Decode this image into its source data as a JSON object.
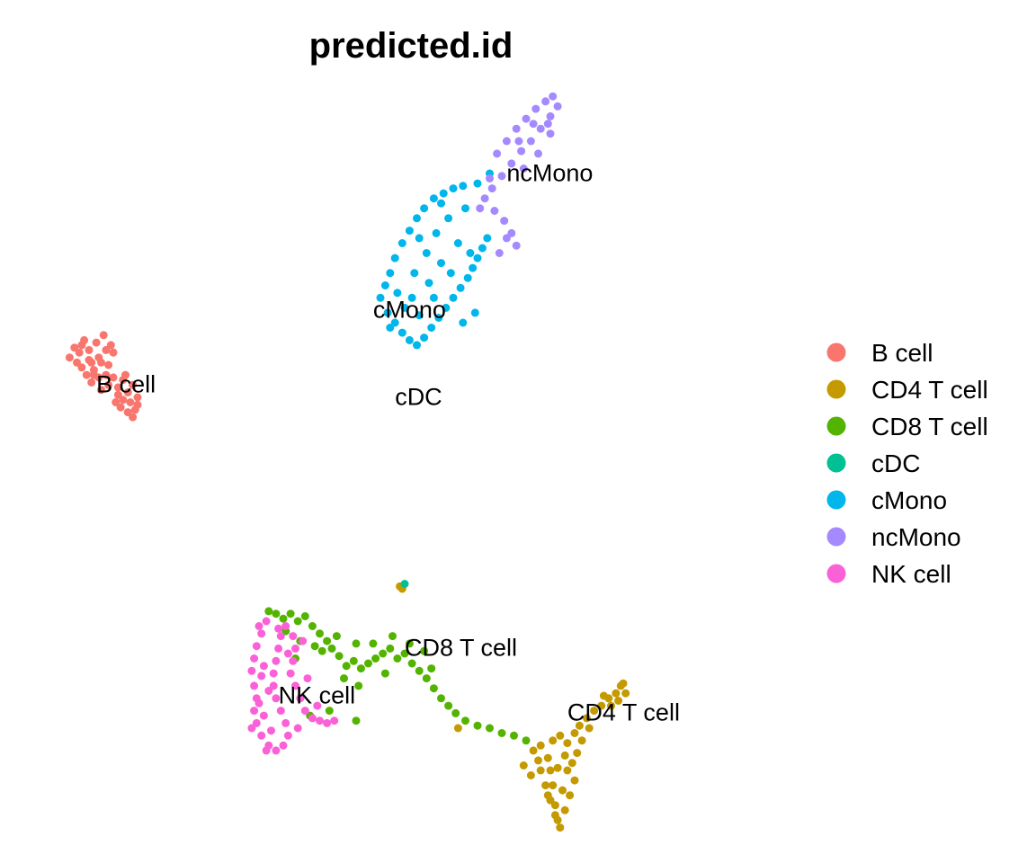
{
  "chart_data": {
    "type": "scatter",
    "title": "predicted.id",
    "xlabel": "",
    "ylabel": "",
    "axes": "hidden",
    "grid": false,
    "legend_position": "right",
    "xlim": [
      -15,
      15
    ],
    "ylim": [
      -15,
      15
    ],
    "categories": [
      "B cell",
      "CD4 T cell",
      "CD8 T cell",
      "cDC",
      "cMono",
      "ncMono",
      "NK cell"
    ],
    "colors": {
      "B cell": "#F8766D",
      "CD4 T cell": "#C49A00",
      "CD8 T cell": "#53B400",
      "cDC": "#00C094",
      "cMono": "#00B6EB",
      "ncMono": "#A58AFF",
      "NK cell": "#FB61D7"
    },
    "series": [
      {
        "name": "B cell",
        "label": {
          "text": "B cell",
          "x": -12.7,
          "y": 3.2
        },
        "points": [
          [
            -13.8,
            4.6
          ],
          [
            -13.6,
            5.0
          ],
          [
            -13.4,
            4.8
          ],
          [
            -13.2,
            5.3
          ],
          [
            -13.0,
            4.9
          ],
          [
            -12.9,
            4.4
          ],
          [
            -12.8,
            4.1
          ],
          [
            -13.3,
            4.2
          ],
          [
            -13.1,
            3.9
          ],
          [
            -12.9,
            3.6
          ],
          [
            -12.6,
            3.8
          ],
          [
            -12.5,
            4.4
          ],
          [
            -12.7,
            5.2
          ],
          [
            -12.4,
            5.5
          ],
          [
            -12.3,
            4.9
          ],
          [
            -12.2,
            4.3
          ],
          [
            -12.0,
            3.8
          ],
          [
            -11.8,
            3.4
          ],
          [
            -11.6,
            3.7
          ],
          [
            -11.4,
            3.2
          ],
          [
            -11.2,
            3.5
          ],
          [
            -11.0,
            3.0
          ],
          [
            -11.3,
            2.8
          ],
          [
            -11.6,
            2.9
          ],
          [
            -11.8,
            3.1
          ],
          [
            -11.1,
            2.5
          ],
          [
            -11.4,
            2.4
          ],
          [
            -11.7,
            2.6
          ],
          [
            -12.2,
            3.5
          ],
          [
            -12.0,
            4.8
          ],
          [
            -12.6,
            4.6
          ],
          [
            -13.0,
            4.5
          ],
          [
            -13.5,
            4.4
          ],
          [
            -12.8,
            3.9
          ],
          [
            -11.9,
            2.8
          ],
          [
            -11.5,
            3.9
          ],
          [
            -12.3,
            3.9
          ],
          [
            -11.2,
            2.2
          ],
          [
            -11.0,
            2.7
          ],
          [
            -12.1,
            5.1
          ],
          [
            -13.3,
            5.1
          ],
          [
            -12.5,
            3.3
          ]
        ]
      },
      {
        "name": "CD4 T cell",
        "label": {
          "text": "CD4 T cell",
          "x": 6.7,
          "y": -10.0
        },
        "points": [
          [
            5.3,
            -11.2
          ],
          [
            5.6,
            -11.0
          ],
          [
            5.9,
            -11.5
          ],
          [
            6.1,
            -10.8
          ],
          [
            6.4,
            -10.6
          ],
          [
            6.7,
            -10.9
          ],
          [
            7.0,
            -10.5
          ],
          [
            7.2,
            -10.2
          ],
          [
            7.5,
            -9.9
          ],
          [
            7.8,
            -9.6
          ],
          [
            8.1,
            -9.4
          ],
          [
            8.4,
            -9.1
          ],
          [
            8.7,
            -8.9
          ],
          [
            8.9,
            -8.6
          ],
          [
            9.1,
            -8.9
          ],
          [
            8.8,
            -9.2
          ],
          [
            8.5,
            -9.4
          ],
          [
            5.6,
            -12.0
          ],
          [
            5.8,
            -12.6
          ],
          [
            6.0,
            -13.2
          ],
          [
            6.2,
            -13.8
          ],
          [
            6.4,
            -14.3
          ],
          [
            6.6,
            -13.6
          ],
          [
            6.8,
            -13.0
          ],
          [
            7.0,
            -12.4
          ],
          [
            6.9,
            -11.7
          ],
          [
            6.6,
            -11.4
          ],
          [
            6.3,
            -11.9
          ],
          [
            6.1,
            -12.6
          ],
          [
            5.9,
            -13.0
          ],
          [
            6.7,
            -12.0
          ],
          [
            6.5,
            -12.8
          ],
          [
            7.1,
            -11.3
          ],
          [
            6.2,
            -13.4
          ],
          [
            6.3,
            -14.0
          ],
          [
            5.5,
            -11.6
          ],
          [
            7.3,
            -10.8
          ],
          [
            4.9,
            -11.8
          ],
          [
            5.2,
            -12.2
          ],
          [
            8.2,
            -9.0
          ],
          [
            9.0,
            -8.5
          ],
          [
            7.6,
            -10.3
          ],
          [
            6.0,
            -12.0
          ],
          [
            -0.2,
            -4.6
          ],
          [
            -0.1,
            -4.7
          ],
          [
            2.2,
            -10.3
          ]
        ]
      },
      {
        "name": "CD8 T cell",
        "label": {
          "text": "CD8 T cell",
          "x": 0.0,
          "y": -7.4
        },
        "points": [
          [
            -5.6,
            -5.6
          ],
          [
            -5.3,
            -5.7
          ],
          [
            -5.0,
            -5.9
          ],
          [
            -4.7,
            -5.7
          ],
          [
            -4.4,
            -6.0
          ],
          [
            -4.1,
            -5.8
          ],
          [
            -3.8,
            -6.2
          ],
          [
            -3.5,
            -6.5
          ],
          [
            -3.2,
            -6.8
          ],
          [
            -3.4,
            -7.2
          ],
          [
            -3.0,
            -7.1
          ],
          [
            -2.7,
            -7.4
          ],
          [
            -2.4,
            -7.8
          ],
          [
            -2.1,
            -7.6
          ],
          [
            -1.8,
            -7.9
          ],
          [
            -1.5,
            -7.7
          ],
          [
            -1.2,
            -7.5
          ],
          [
            -0.9,
            -7.3
          ],
          [
            -0.6,
            -7.1
          ],
          [
            -0.3,
            -7.5
          ],
          [
            0.0,
            -7.3
          ],
          [
            0.3,
            -7.7
          ],
          [
            0.6,
            -8.0
          ],
          [
            0.9,
            -8.3
          ],
          [
            1.2,
            -8.7
          ],
          [
            1.5,
            -9.1
          ],
          [
            1.8,
            -9.4
          ],
          [
            2.1,
            -9.7
          ],
          [
            2.5,
            -10.0
          ],
          [
            3.0,
            -10.2
          ],
          [
            3.5,
            -10.3
          ],
          [
            4.0,
            -10.5
          ],
          [
            4.5,
            -10.6
          ],
          [
            5.0,
            -10.8
          ],
          [
            -2.8,
            -6.6
          ],
          [
            -2.0,
            -6.9
          ],
          [
            -1.3,
            -6.9
          ],
          [
            -0.5,
            -6.6
          ],
          [
            0.2,
            -6.9
          ],
          [
            0.8,
            -7.2
          ],
          [
            1.1,
            -7.9
          ],
          [
            -4.9,
            -6.4
          ],
          [
            -4.3,
            -6.8
          ],
          [
            -3.7,
            -7.0
          ],
          [
            -2.5,
            -8.3
          ],
          [
            -1.9,
            -8.6
          ],
          [
            -0.8,
            -8.1
          ],
          [
            -3.1,
            -9.6
          ],
          [
            -3.9,
            -9.8
          ],
          [
            -2.0,
            -10.0
          ],
          [
            -4.5,
            -7.5
          ]
        ]
      },
      {
        "name": "cDC",
        "label": {
          "text": "cDC",
          "x": -0.4,
          "y": 2.7
        },
        "points": [
          [
            0.0,
            -4.5
          ]
        ]
      },
      {
        "name": "cMono",
        "label": {
          "text": "cMono",
          "x": -1.3,
          "y": 6.2
        },
        "points": [
          [
            -1.0,
            7.0
          ],
          [
            -0.8,
            7.5
          ],
          [
            -0.6,
            8.0
          ],
          [
            -0.4,
            8.6
          ],
          [
            -0.1,
            9.2
          ],
          [
            0.2,
            9.7
          ],
          [
            0.5,
            10.2
          ],
          [
            0.8,
            10.6
          ],
          [
            1.2,
            11.0
          ],
          [
            1.6,
            11.2
          ],
          [
            2.0,
            11.4
          ],
          [
            2.4,
            11.5
          ],
          [
            -0.7,
            6.4
          ],
          [
            -0.4,
            6.0
          ],
          [
            -0.1,
            5.6
          ],
          [
            0.2,
            5.3
          ],
          [
            0.5,
            5.1
          ],
          [
            0.8,
            5.4
          ],
          [
            1.1,
            5.8
          ],
          [
            1.4,
            6.2
          ],
          [
            1.7,
            6.6
          ],
          [
            2.0,
            7.0
          ],
          [
            2.3,
            7.4
          ],
          [
            2.6,
            7.8
          ],
          [
            2.8,
            8.2
          ],
          [
            3.0,
            8.6
          ],
          [
            3.2,
            9.0
          ],
          [
            3.4,
            9.4
          ],
          [
            0.4,
            8.0
          ],
          [
            0.9,
            8.8
          ],
          [
            1.3,
            9.6
          ],
          [
            1.8,
            10.2
          ],
          [
            0.3,
            7.0
          ],
          [
            1.0,
            7.6
          ],
          [
            1.5,
            8.4
          ],
          [
            2.2,
            9.2
          ],
          [
            0.0,
            6.6
          ],
          [
            -0.3,
            7.2
          ],
          [
            0.6,
            6.3
          ],
          [
            1.2,
            7.0
          ],
          [
            2.5,
            10.6
          ],
          [
            3.0,
            11.6
          ],
          [
            3.5,
            12.0
          ],
          [
            2.9,
            6.4
          ],
          [
            2.4,
            6.0
          ],
          [
            -0.6,
            5.8
          ],
          [
            1.9,
            8.0
          ],
          [
            0.6,
            9.4
          ],
          [
            1.5,
            10.8
          ],
          [
            2.7,
            8.8
          ]
        ]
      },
      {
        "name": "ncMono",
        "label": {
          "text": "ncMono",
          "x": 4.2,
          "y": 11.7
        },
        "points": [
          [
            3.8,
            12.8
          ],
          [
            4.2,
            13.3
          ],
          [
            4.6,
            13.8
          ],
          [
            5.0,
            14.2
          ],
          [
            5.4,
            14.6
          ],
          [
            5.8,
            14.9
          ],
          [
            6.1,
            15.1
          ],
          [
            6.3,
            14.7
          ],
          [
            6.0,
            14.3
          ],
          [
            5.6,
            13.8
          ],
          [
            5.2,
            13.3
          ],
          [
            4.8,
            12.9
          ],
          [
            4.4,
            12.4
          ],
          [
            4.0,
            11.9
          ],
          [
            3.6,
            11.4
          ],
          [
            3.3,
            11.0
          ],
          [
            3.7,
            10.5
          ],
          [
            4.1,
            10.1
          ],
          [
            4.4,
            9.6
          ],
          [
            4.6,
            9.1
          ],
          [
            4.2,
            9.4
          ],
          [
            3.9,
            8.8
          ],
          [
            4.9,
            12.2
          ],
          [
            5.5,
            12.8
          ],
          [
            6.0,
            13.6
          ],
          [
            5.9,
            14.0
          ],
          [
            5.3,
            14.0
          ],
          [
            4.7,
            13.3
          ],
          [
            3.5,
            11.8
          ],
          [
            3.1,
            10.6
          ]
        ]
      },
      {
        "name": "NK cell",
        "label": {
          "text": "NK cell",
          "x": -5.2,
          "y": -9.3
        },
        "points": [
          [
            -5.7,
            -6.0
          ],
          [
            -5.9,
            -6.5
          ],
          [
            -6.1,
            -7.0
          ],
          [
            -6.2,
            -7.5
          ],
          [
            -6.3,
            -8.0
          ],
          [
            -6.2,
            -8.6
          ],
          [
            -6.1,
            -9.1
          ],
          [
            -6.2,
            -9.6
          ],
          [
            -6.1,
            -10.1
          ],
          [
            -5.9,
            -10.6
          ],
          [
            -5.6,
            -11.0
          ],
          [
            -5.3,
            -11.2
          ],
          [
            -5.0,
            -11.0
          ],
          [
            -4.8,
            -10.6
          ],
          [
            -4.9,
            -10.1
          ],
          [
            -5.1,
            -9.6
          ],
          [
            -5.3,
            -9.1
          ],
          [
            -5.4,
            -8.6
          ],
          [
            -5.4,
            -8.1
          ],
          [
            -5.3,
            -7.6
          ],
          [
            -5.2,
            -7.1
          ],
          [
            -5.1,
            -6.6
          ],
          [
            -4.9,
            -6.2
          ],
          [
            -4.6,
            -6.6
          ],
          [
            -4.5,
            -7.1
          ],
          [
            -4.6,
            -7.6
          ],
          [
            -4.7,
            -8.1
          ],
          [
            -4.5,
            -8.6
          ],
          [
            -4.3,
            -9.1
          ],
          [
            -4.1,
            -9.6
          ],
          [
            -3.8,
            -9.9
          ],
          [
            -3.5,
            -10.0
          ],
          [
            -3.2,
            -10.1
          ],
          [
            -2.9,
            -10.0
          ],
          [
            -3.6,
            -9.4
          ],
          [
            -5.8,
            -7.8
          ],
          [
            -5.6,
            -8.8
          ],
          [
            -5.8,
            -9.8
          ],
          [
            -5.5,
            -10.4
          ],
          [
            -4.8,
            -7.3
          ],
          [
            -4.2,
            -6.8
          ],
          [
            -6.0,
            -6.2
          ],
          [
            -5.2,
            -6.3
          ],
          [
            -4.0,
            -8.3
          ],
          [
            -5.9,
            -8.2
          ],
          [
            -4.4,
            -10.3
          ],
          [
            -5.7,
            -11.2
          ],
          [
            -6.3,
            -10.3
          ],
          [
            -6.0,
            -9.3
          ]
        ]
      }
    ]
  }
}
